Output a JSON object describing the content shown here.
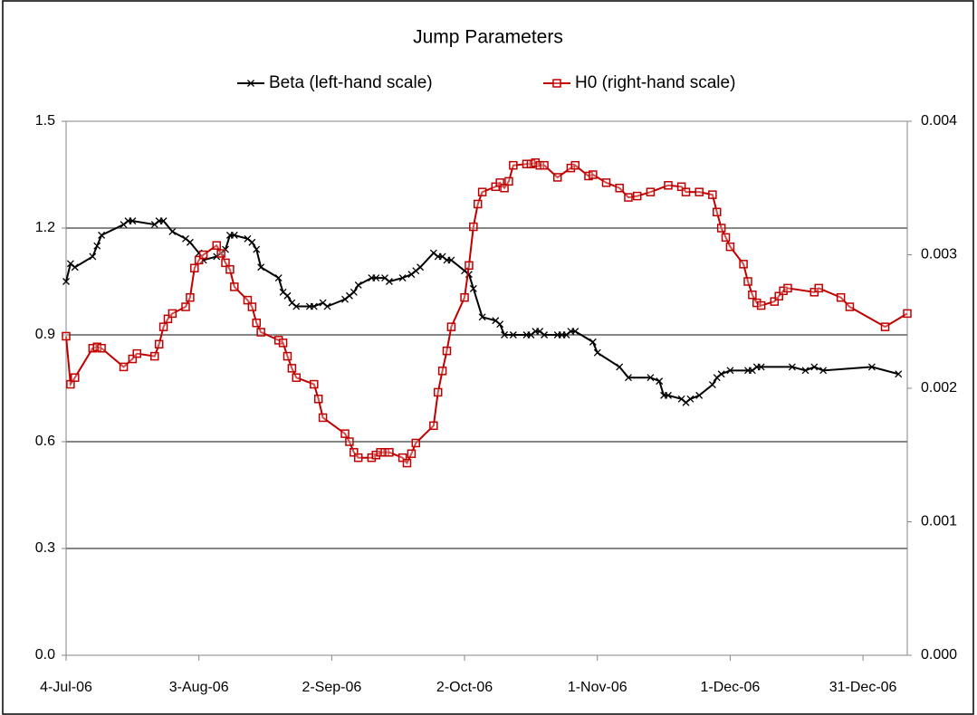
{
  "chart_data": {
    "type": "line",
    "title": "Jump Parameters",
    "xlim": [
      "2006-07-04",
      "2007-01-10"
    ],
    "xticks": [
      {
        "value": "2006-07-04",
        "label": "4-Jul-06"
      },
      {
        "value": "2006-08-03",
        "label": "3-Aug-06"
      },
      {
        "value": "2006-09-02",
        "label": "2-Sep-06"
      },
      {
        "value": "2006-10-02",
        "label": "2-Oct-06"
      },
      {
        "value": "2006-11-01",
        "label": "1-Nov-06"
      },
      {
        "value": "2006-12-01",
        "label": "1-Dec-06"
      },
      {
        "value": "2006-12-31",
        "label": "31-Dec-06"
      }
    ],
    "ylim": [
      0,
      1.5
    ],
    "yticks": [
      {
        "value": 0,
        "label": "0.0"
      },
      0.3,
      0.6,
      0.9,
      1.2,
      1.5
    ],
    "y2lim": [
      0,
      0.004
    ],
    "y2ticks": [
      {
        "value": 0,
        "label": "0.000"
      },
      {
        "value": 0.001,
        "label": "0.001"
      },
      {
        "value": 0.002,
        "label": "0.002"
      },
      {
        "value": 0.003,
        "label": "0.003"
      },
      {
        "value": 0.004,
        "label": "0.004"
      }
    ],
    "grid": true,
    "legend": "top",
    "series": [
      {
        "name": "Beta (left-hand scale)",
        "color": "#000000",
        "marker": "x",
        "axis": "y",
        "x": [
          "2006-07-04",
          "2006-07-05",
          "2006-07-06",
          "2006-07-10",
          "2006-07-11",
          "2006-07-12",
          "2006-07-17",
          "2006-07-18",
          "2006-07-19",
          "2006-07-24",
          "2006-07-25",
          "2006-07-26",
          "2006-07-28",
          "2006-07-31",
          "2006-08-01",
          "2006-08-03",
          "2006-08-04",
          "2006-08-07",
          "2006-08-08",
          "2006-08-09",
          "2006-08-10",
          "2006-08-11",
          "2006-08-14",
          "2006-08-15",
          "2006-08-16",
          "2006-08-17",
          "2006-08-21",
          "2006-08-22",
          "2006-08-23",
          "2006-08-24",
          "2006-08-25",
          "2006-08-28",
          "2006-08-29",
          "2006-08-31",
          "2006-09-01",
          "2006-09-05",
          "2006-09-06",
          "2006-09-07",
          "2006-09-08",
          "2006-09-11",
          "2006-09-12",
          "2006-09-14",
          "2006-09-15",
          "2006-09-18",
          "2006-09-20",
          "2006-09-21",
          "2006-09-22",
          "2006-09-25",
          "2006-09-26",
          "2006-09-27",
          "2006-09-28",
          "2006-09-29",
          "2006-10-02",
          "2006-10-03",
          "2006-10-04",
          "2006-10-06",
          "2006-10-09",
          "2006-10-10",
          "2006-10-11",
          "2006-10-13",
          "2006-10-16",
          "2006-10-17",
          "2006-10-18",
          "2006-10-19",
          "2006-10-20",
          "2006-10-23",
          "2006-10-24",
          "2006-10-25",
          "2006-10-26",
          "2006-10-27",
          "2006-10-31",
          "2006-11-01",
          "2006-11-06",
          "2006-11-08",
          "2006-11-13",
          "2006-11-15",
          "2006-11-16",
          "2006-11-17",
          "2006-11-20",
          "2006-11-21",
          "2006-11-22",
          "2006-11-24",
          "2006-11-27",
          "2006-11-28",
          "2006-11-29",
          "2006-12-01",
          "2006-12-05",
          "2006-12-06",
          "2006-12-07",
          "2006-12-08",
          "2006-12-15",
          "2006-12-18",
          "2006-12-20",
          "2006-12-22",
          "2007-01-02",
          "2007-01-08"
        ],
        "values": [
          1.05,
          1.1,
          1.09,
          1.12,
          1.15,
          1.18,
          1.21,
          1.22,
          1.22,
          1.21,
          1.22,
          1.22,
          1.19,
          1.17,
          1.16,
          1.13,
          1.11,
          1.12,
          1.13,
          1.14,
          1.18,
          1.18,
          1.17,
          1.16,
          1.14,
          1.09,
          1.06,
          1.02,
          1.01,
          0.99,
          0.98,
          0.98,
          0.98,
          0.99,
          0.98,
          1.0,
          1.01,
          1.02,
          1.04,
          1.06,
          1.06,
          1.06,
          1.05,
          1.06,
          1.07,
          1.08,
          1.09,
          1.13,
          1.12,
          1.12,
          1.11,
          1.11,
          1.08,
          1.07,
          1.03,
          0.95,
          0.94,
          0.93,
          0.9,
          0.9,
          0.9,
          0.9,
          0.91,
          0.91,
          0.9,
          0.9,
          0.9,
          0.9,
          0.91,
          0.91,
          0.88,
          0.85,
          0.81,
          0.78,
          0.78,
          0.77,
          0.73,
          0.73,
          0.72,
          0.71,
          0.72,
          0.73,
          0.76,
          0.78,
          0.79,
          0.8,
          0.8,
          0.8,
          0.81,
          0.81,
          0.81,
          0.8,
          0.81,
          0.8,
          0.81,
          0.79
        ]
      },
      {
        "name": "H0 (right-hand scale)",
        "color": "#c00000",
        "marker": "square",
        "axis": "y2",
        "x": [
          "2006-07-04",
          "2006-07-05",
          "2006-07-06",
          "2006-07-10",
          "2006-07-11",
          "2006-07-12",
          "2006-07-17",
          "2006-07-19",
          "2006-07-20",
          "2006-07-24",
          "2006-07-25",
          "2006-07-26",
          "2006-07-27",
          "2006-07-28",
          "2006-07-31",
          "2006-08-01",
          "2006-08-02",
          "2006-08-03",
          "2006-08-04",
          "2006-08-07",
          "2006-08-08",
          "2006-08-09",
          "2006-08-10",
          "2006-08-11",
          "2006-08-14",
          "2006-08-15",
          "2006-08-16",
          "2006-08-17",
          "2006-08-21",
          "2006-08-22",
          "2006-08-23",
          "2006-08-24",
          "2006-08-25",
          "2006-08-29",
          "2006-08-30",
          "2006-08-31",
          "2006-09-05",
          "2006-09-06",
          "2006-09-07",
          "2006-09-08",
          "2006-09-11",
          "2006-09-12",
          "2006-09-13",
          "2006-09-14",
          "2006-09-15",
          "2006-09-18",
          "2006-09-19",
          "2006-09-20",
          "2006-09-21",
          "2006-09-25",
          "2006-09-26",
          "2006-09-27",
          "2006-09-28",
          "2006-09-29",
          "2006-10-02",
          "2006-10-03",
          "2006-10-04",
          "2006-10-05",
          "2006-10-06",
          "2006-10-09",
          "2006-10-10",
          "2006-10-11",
          "2006-10-12",
          "2006-10-13",
          "2006-10-16",
          "2006-10-17",
          "2006-10-18",
          "2006-10-19",
          "2006-10-20",
          "2006-10-23",
          "2006-10-26",
          "2006-10-27",
          "2006-10-30",
          "2006-10-31",
          "2006-11-03",
          "2006-11-06",
          "2006-11-08",
          "2006-11-10",
          "2006-11-13",
          "2006-11-17",
          "2006-11-20",
          "2006-11-21",
          "2006-11-24",
          "2006-11-27",
          "2006-11-28",
          "2006-11-29",
          "2006-11-30",
          "2006-12-01",
          "2006-12-04",
          "2006-12-05",
          "2006-12-06",
          "2006-12-07",
          "2006-12-08",
          "2006-12-11",
          "2006-12-12",
          "2006-12-13",
          "2006-12-14",
          "2006-12-20",
          "2006-12-21",
          "2006-12-26",
          "2006-12-28",
          "2007-01-05",
          "2007-01-10"
        ],
        "values": [
          0.00239,
          0.00203,
          0.00208,
          0.0023,
          0.00231,
          0.0023,
          0.00216,
          0.00222,
          0.00226,
          0.00224,
          0.00233,
          0.00246,
          0.00252,
          0.00256,
          0.00261,
          0.00268,
          0.0029,
          0.00296,
          0.003,
          0.00307,
          0.00301,
          0.00294,
          0.00289,
          0.00276,
          0.00266,
          0.00261,
          0.00249,
          0.00242,
          0.00236,
          0.00234,
          0.00224,
          0.00215,
          0.00208,
          0.00203,
          0.00192,
          0.00178,
          0.00166,
          0.0016,
          0.00152,
          0.00148,
          0.00148,
          0.0015,
          0.00152,
          0.00152,
          0.00152,
          0.00148,
          0.00144,
          0.00151,
          0.00159,
          0.00172,
          0.00197,
          0.00213,
          0.00228,
          0.00246,
          0.00268,
          0.00292,
          0.00321,
          0.00338,
          0.00347,
          0.00351,
          0.00354,
          0.0035,
          0.00355,
          0.00367,
          0.00368,
          0.00368,
          0.00369,
          0.00367,
          0.00367,
          0.00358,
          0.00365,
          0.00367,
          0.00359,
          0.0036,
          0.00354,
          0.0035,
          0.00343,
          0.00344,
          0.00347,
          0.00352,
          0.00351,
          0.00347,
          0.00347,
          0.00345,
          0.00332,
          0.0032,
          0.00313,
          0.00306,
          0.00293,
          0.0028,
          0.0027,
          0.00264,
          0.00262,
          0.00265,
          0.00269,
          0.00273,
          0.00275,
          0.00272,
          0.00275,
          0.00268,
          0.00261,
          0.00246,
          0.00256
        ]
      }
    ]
  }
}
